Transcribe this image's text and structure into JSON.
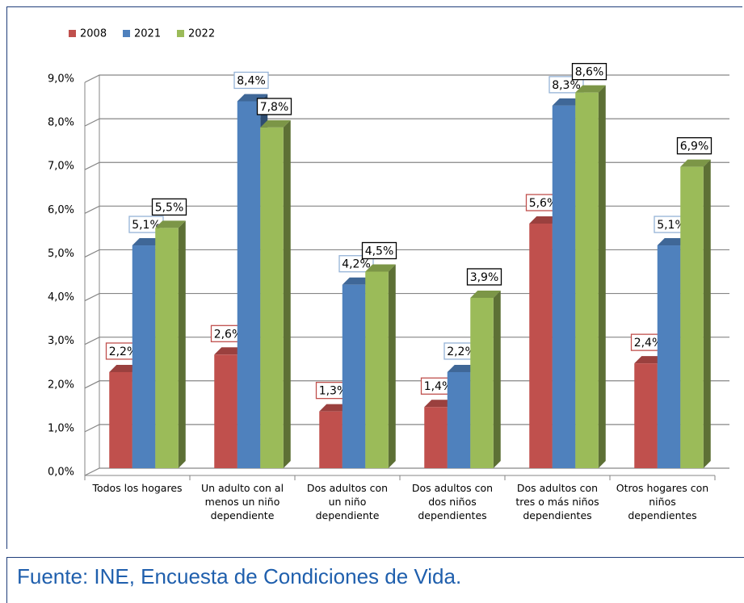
{
  "chart_data": {
    "type": "bar3d",
    "categories": [
      "Todos los hogares",
      "Un adulto con al menos un niño dependiente",
      "Dos adultos con un niño dependiente",
      "Dos adultos con dos niños dependientes",
      "Dos adultos con tres o más niños dependientes",
      "Otros hogares con niños dependientes"
    ],
    "series": [
      {
        "name": "2008",
        "color": "#c0504d",
        "label_border": "#c0504d",
        "values": [
          2.2,
          2.6,
          1.3,
          1.4,
          5.6,
          2.4
        ],
        "value_labels": [
          "2,2%",
          "2,6%",
          "1,3%",
          "1,4%",
          "5,6%",
          "2,4%"
        ]
      },
      {
        "name": "2021",
        "color": "#4f81bd",
        "label_border": "#95b3d7",
        "values": [
          5.1,
          8.4,
          4.2,
          2.2,
          8.3,
          5.1
        ],
        "value_labels": [
          "5,1%",
          "8,4%",
          "4,2%",
          "2,2%",
          "8,3%",
          "5,1%"
        ]
      },
      {
        "name": "2022",
        "color": "#9bbb59",
        "label_border": "#000000",
        "values": [
          5.5,
          7.8,
          4.5,
          3.9,
          8.6,
          6.9
        ],
        "value_labels": [
          "5,5%",
          "7,8%",
          "4,5%",
          "3,9%",
          "8,6%",
          "6,9%"
        ]
      }
    ],
    "ylim": [
      0,
      9
    ],
    "yticks": [
      {
        "value": 0,
        "label": "0,0%"
      },
      {
        "value": 1,
        "label": "1,0%"
      },
      {
        "value": 2,
        "label": "2,0%"
      },
      {
        "value": 3,
        "label": "3,0%"
      },
      {
        "value": 4,
        "label": "4,0%"
      },
      {
        "value": 5,
        "label": "5,0%"
      },
      {
        "value": 6,
        "label": "6,0%"
      },
      {
        "value": 7,
        "label": "7,0%"
      },
      {
        "value": 8,
        "label": "8,0%"
      },
      {
        "value": 9,
        "label": "9,0%"
      }
    ],
    "grid": true,
    "legend": "top-left",
    "source": "Fuente: INE, Encuesta de Condiciones de Vida."
  }
}
